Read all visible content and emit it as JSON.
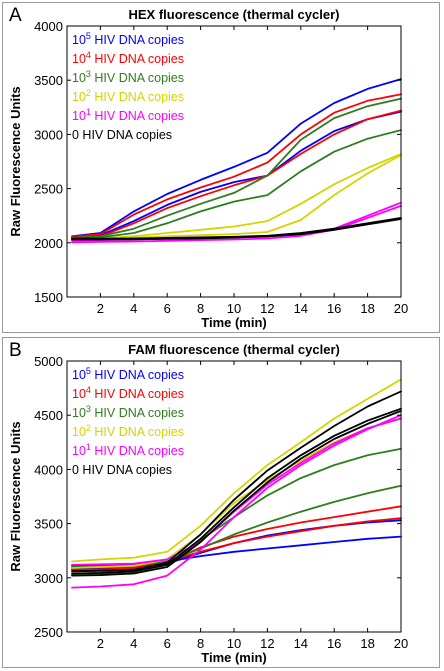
{
  "chart_data": [
    {
      "panel_label": "A",
      "type": "line",
      "title": "HEX fluorescence (thermal cycler)",
      "xlabel": "Time (min)",
      "ylabel": "Raw Fluorescence Units",
      "xlim": [
        0,
        20
      ],
      "ylim": [
        1500,
        4000
      ],
      "xticks": [
        2,
        4,
        6,
        8,
        10,
        12,
        14,
        16,
        18,
        20
      ],
      "yticks": [
        1500,
        2000,
        2500,
        3000,
        3500,
        4000
      ],
      "grid": false,
      "legend_position": "top-left",
      "legend": [
        {
          "base": "10",
          "exp": "5",
          "text": " HIV DNA copies",
          "color": "#0000ff"
        },
        {
          "base": "10",
          "exp": "4",
          "text": " HIV DNA copies",
          "color": "#ff0000"
        },
        {
          "base": "10",
          "exp": "3",
          "text": " HIV DNA copies",
          "color": "#2e7d1e"
        },
        {
          "base": "10",
          "exp": "2",
          "text": " HIV DNA copies",
          "color": "#d4d400"
        },
        {
          "base": "10",
          "exp": "1",
          "text": " HIV DNA copies",
          "color": "#ff00ff"
        },
        {
          "base": "0",
          "exp": "",
          "text": " HIV DNA copies",
          "color": "#000000"
        }
      ],
      "x": [
        0.3,
        2,
        4,
        6,
        8,
        10,
        12,
        14,
        16,
        18,
        20
      ],
      "series": [
        {
          "color": "#0000ff",
          "values": [
            2060,
            2090,
            2290,
            2450,
            2580,
            2700,
            2830,
            3100,
            3290,
            3420,
            3510
          ]
        },
        {
          "color": "#0000ff",
          "values": [
            2050,
            2070,
            2200,
            2350,
            2470,
            2560,
            2620,
            2850,
            3030,
            3140,
            3210
          ]
        },
        {
          "color": "#ff0000",
          "values": [
            2055,
            2080,
            2260,
            2400,
            2510,
            2610,
            2740,
            3000,
            3200,
            3310,
            3370
          ]
        },
        {
          "color": "#ff0000",
          "values": [
            2045,
            2060,
            2180,
            2320,
            2430,
            2530,
            2620,
            2820,
            3000,
            3140,
            3220
          ]
        },
        {
          "color": "#2e7d1e",
          "values": [
            2045,
            2060,
            2130,
            2250,
            2360,
            2460,
            2620,
            2950,
            3150,
            3260,
            3330
          ]
        },
        {
          "color": "#2e7d1e",
          "values": [
            2040,
            2050,
            2090,
            2180,
            2290,
            2380,
            2440,
            2660,
            2840,
            2960,
            3040
          ]
        },
        {
          "color": "#d4d400",
          "values": [
            2030,
            2040,
            2060,
            2090,
            2120,
            2150,
            2200,
            2360,
            2540,
            2690,
            2820
          ]
        },
        {
          "color": "#d4d400",
          "values": [
            2025,
            2035,
            2045,
            2060,
            2070,
            2080,
            2100,
            2210,
            2440,
            2640,
            2810
          ]
        },
        {
          "color": "#ff00ff",
          "values": [
            2020,
            2025,
            2030,
            2040,
            2045,
            2050,
            2060,
            2080,
            2130,
            2250,
            2370
          ]
        },
        {
          "color": "#ff00ff",
          "values": [
            2005,
            2008,
            2012,
            2018,
            2025,
            2030,
            2040,
            2065,
            2120,
            2230,
            2340
          ]
        },
        {
          "color": "#000000",
          "values": [
            2040,
            2040,
            2040,
            2045,
            2050,
            2055,
            2065,
            2090,
            2130,
            2180,
            2230
          ]
        },
        {
          "color": "#000000",
          "values": [
            2030,
            2030,
            2032,
            2036,
            2040,
            2048,
            2058,
            2080,
            2120,
            2170,
            2220
          ]
        }
      ]
    },
    {
      "panel_label": "B",
      "type": "line",
      "title": "FAM fluorescence (thermal cycler)",
      "xlabel": "Time (min)",
      "ylabel": "Raw Fluorescence Units",
      "xlim": [
        0,
        20
      ],
      "ylim": [
        2500,
        5000
      ],
      "xticks": [
        2,
        4,
        6,
        8,
        10,
        12,
        14,
        16,
        18,
        20
      ],
      "yticks": [
        2500,
        3000,
        3500,
        4000,
        4500,
        5000
      ],
      "grid": false,
      "legend_position": "top-left",
      "legend": [
        {
          "base": "10",
          "exp": "5",
          "text": " HIV DNA copies",
          "color": "#0000ff"
        },
        {
          "base": "10",
          "exp": "4",
          "text": " HIV DNA copies",
          "color": "#ff0000"
        },
        {
          "base": "10",
          "exp": "3",
          "text": " HIV DNA copies",
          "color": "#2e7d1e"
        },
        {
          "base": "10",
          "exp": "2",
          "text": " HIV DNA copies",
          "color": "#d4d400"
        },
        {
          "base": "10",
          "exp": "1",
          "text": " HIV DNA copies",
          "color": "#ff00ff"
        },
        {
          "base": "0",
          "exp": "",
          "text": " HIV DNA copies",
          "color": "#000000"
        }
      ],
      "x": [
        0.3,
        2,
        4,
        6,
        8,
        10,
        12,
        14,
        16,
        18,
        20
      ],
      "series": [
        {
          "color": "#0000ff",
          "values": [
            3110,
            3115,
            3125,
            3150,
            3200,
            3240,
            3270,
            3300,
            3330,
            3360,
            3380
          ]
        },
        {
          "color": "#0000ff",
          "values": [
            3080,
            3085,
            3095,
            3130,
            3230,
            3320,
            3390,
            3440,
            3480,
            3510,
            3530
          ]
        },
        {
          "color": "#ff0000",
          "values": [
            3070,
            3075,
            3090,
            3140,
            3280,
            3380,
            3450,
            3510,
            3560,
            3610,
            3660
          ]
        },
        {
          "color": "#ff0000",
          "values": [
            3090,
            3095,
            3110,
            3150,
            3240,
            3320,
            3380,
            3430,
            3480,
            3520,
            3550
          ]
        },
        {
          "color": "#2e7d1e",
          "values": [
            3030,
            3035,
            3050,
            3120,
            3350,
            3560,
            3760,
            3920,
            4040,
            4130,
            4190
          ]
        },
        {
          "color": "#2e7d1e",
          "values": [
            3100,
            3105,
            3115,
            3150,
            3270,
            3400,
            3510,
            3610,
            3700,
            3780,
            3850
          ]
        },
        {
          "color": "#d4d400",
          "values": [
            3150,
            3170,
            3185,
            3240,
            3480,
            3780,
            4040,
            4250,
            4470,
            4650,
            4830
          ]
        },
        {
          "color": "#d4d400",
          "values": [
            3090,
            3100,
            3110,
            3170,
            3400,
            3690,
            3900,
            4080,
            4250,
            4380,
            4470
          ]
        },
        {
          "color": "#ff00ff",
          "values": [
            2910,
            2920,
            2940,
            3020,
            3260,
            3560,
            3830,
            4040,
            4220,
            4370,
            4500
          ]
        },
        {
          "color": "#ff00ff",
          "values": [
            3120,
            3125,
            3130,
            3170,
            3330,
            3610,
            3860,
            4060,
            4240,
            4380,
            4470
          ]
        },
        {
          "color": "#000000",
          "values": [
            3060,
            3065,
            3075,
            3140,
            3400,
            3720,
            3990,
            4200,
            4400,
            4580,
            4720
          ]
        },
        {
          "color": "#000000",
          "values": [
            3040,
            3045,
            3060,
            3120,
            3360,
            3650,
            3920,
            4130,
            4310,
            4450,
            4560
          ]
        },
        {
          "color": "#000000",
          "values": [
            3020,
            3025,
            3040,
            3100,
            3330,
            3620,
            3880,
            4100,
            4280,
            4420,
            4540
          ]
        }
      ]
    }
  ]
}
